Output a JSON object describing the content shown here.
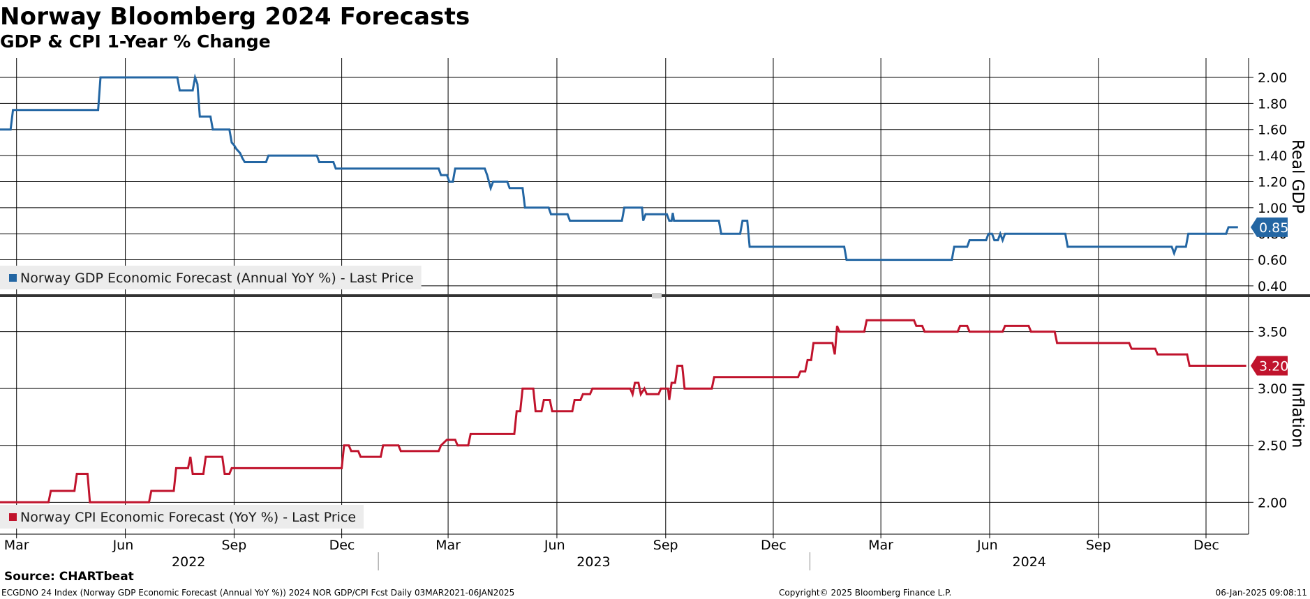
{
  "header": {
    "title": "Norway Bloomberg 2024 Forecasts",
    "subtitle": "GDP & CPI 1-Year % Change"
  },
  "footer": {
    "source": "Source: CHARTbeat",
    "description": "ECGDNO 24 Index (Norway GDP Economic Forecast (Annual YoY %)) 2024 NOR GDP/CPI Fcst  Daily 03MAR2021-06JAN2025",
    "copyright": "Copyright© 2025 Bloomberg Finance L.P.",
    "timestamp": "06-Jan-2025 09:08:11"
  },
  "colors": {
    "gdp": "#2366a3",
    "cpi": "#c0132c",
    "grid": "#000000",
    "legend_bg": "#ececec"
  },
  "chart_data": [
    {
      "type": "line",
      "panel": "top",
      "ylabel": "Real GDP",
      "ylim": [
        0.33,
        2.15
      ],
      "yticks": [
        0.4,
        0.6,
        0.8,
        1.0,
        1.2,
        1.4,
        1.6,
        1.8,
        2.0
      ],
      "ytick_labels": [
        "0.40",
        "0.60",
        "0.80",
        "1.00",
        "1.20",
        "1.40",
        "1.60",
        "1.80",
        "2.00"
      ],
      "xlim": [
        "2022-02-15",
        "2025-01-06"
      ],
      "grid": true,
      "legend_position": "bottom-left",
      "last_value_label": "0.85",
      "series": [
        {
          "name": "Norway GDP Economic Forecast (Annual YoY %) - Last Price",
          "points": [
            [
              "2022-02-15",
              1.6
            ],
            [
              "2022-02-24",
              1.6
            ],
            [
              "2022-02-26",
              1.75
            ],
            [
              "2022-05-09",
              1.75
            ],
            [
              "2022-05-11",
              2.0
            ],
            [
              "2022-07-15",
              2.0
            ],
            [
              "2022-07-17",
              1.9
            ],
            [
              "2022-07-28",
              1.9
            ],
            [
              "2022-07-30",
              2.0
            ],
            [
              "2022-08-01",
              1.95
            ],
            [
              "2022-08-03",
              1.7
            ],
            [
              "2022-08-12",
              1.7
            ],
            [
              "2022-08-14",
              1.6
            ],
            [
              "2022-08-28",
              1.6
            ],
            [
              "2022-08-30",
              1.5
            ],
            [
              "2022-09-01",
              1.48
            ],
            [
              "2022-09-03",
              1.45
            ],
            [
              "2022-09-06",
              1.42
            ],
            [
              "2022-09-08",
              1.38
            ],
            [
              "2022-09-10",
              1.35
            ],
            [
              "2022-09-28",
              1.35
            ],
            [
              "2022-09-30",
              1.4
            ],
            [
              "2022-11-10",
              1.4
            ],
            [
              "2022-11-12",
              1.35
            ],
            [
              "2022-11-24",
              1.35
            ],
            [
              "2022-11-26",
              1.3
            ],
            [
              "2023-02-21",
              1.3
            ],
            [
              "2023-02-23",
              1.25
            ],
            [
              "2023-02-28",
              1.25
            ],
            [
              "2023-03-02",
              1.2
            ],
            [
              "2023-03-05",
              1.2
            ],
            [
              "2023-03-07",
              1.3
            ],
            [
              "2023-04-01",
              1.3
            ],
            [
              "2023-04-03",
              1.25
            ],
            [
              "2023-04-06",
              1.15
            ],
            [
              "2023-04-08",
              1.2
            ],
            [
              "2023-04-20",
              1.2
            ],
            [
              "2023-04-22",
              1.15
            ],
            [
              "2023-05-03",
              1.15
            ],
            [
              "2023-05-05",
              1.0
            ],
            [
              "2023-05-25",
              1.0
            ],
            [
              "2023-05-27",
              0.95
            ],
            [
              "2023-06-10",
              0.95
            ],
            [
              "2023-06-12",
              0.9
            ],
            [
              "2023-07-26",
              0.9
            ],
            [
              "2023-07-28",
              1.0
            ],
            [
              "2023-08-12",
              1.0
            ],
            [
              "2023-08-13",
              0.9
            ],
            [
              "2023-08-15",
              0.95
            ],
            [
              "2023-09-02",
              0.95
            ],
            [
              "2023-09-04",
              0.9
            ],
            [
              "2023-09-06",
              0.9
            ],
            [
              "2023-09-07",
              0.96
            ],
            [
              "2023-09-08",
              0.9
            ],
            [
              "2023-10-16",
              0.9
            ],
            [
              "2023-10-18",
              0.8
            ],
            [
              "2023-11-03",
              0.8
            ],
            [
              "2023-11-05",
              0.9
            ],
            [
              "2023-11-09",
              0.9
            ],
            [
              "2023-11-11",
              0.7
            ],
            [
              "2024-01-30",
              0.7
            ],
            [
              "2024-02-01",
              0.6
            ],
            [
              "2024-04-30",
              0.6
            ],
            [
              "2024-05-02",
              0.7
            ],
            [
              "2024-05-13",
              0.7
            ],
            [
              "2024-05-15",
              0.75
            ],
            [
              "2024-05-29",
              0.75
            ],
            [
              "2024-05-31",
              0.8
            ],
            [
              "2024-06-03",
              0.8
            ],
            [
              "2024-06-05",
              0.75
            ],
            [
              "2024-06-08",
              0.75
            ],
            [
              "2024-06-10",
              0.8
            ],
            [
              "2024-06-12",
              0.75
            ],
            [
              "2024-06-14",
              0.8
            ],
            [
              "2024-08-04",
              0.8
            ],
            [
              "2024-08-06",
              0.7
            ],
            [
              "2024-11-02",
              0.7
            ],
            [
              "2024-11-04",
              0.65
            ],
            [
              "2024-11-06",
              0.7
            ],
            [
              "2024-11-14",
              0.7
            ],
            [
              "2024-11-16",
              0.8
            ],
            [
              "2024-12-18",
              0.8
            ],
            [
              "2024-12-20",
              0.85
            ],
            [
              "2024-12-28",
              0.85
            ]
          ]
        }
      ]
    },
    {
      "type": "line",
      "panel": "bottom",
      "ylabel": "Inflation",
      "ylim": [
        1.72,
        3.81
      ],
      "yticks": [
        2.0,
        2.5,
        3.0,
        3.5
      ],
      "ytick_labels": [
        "2.00",
        "2.50",
        "3.00",
        "3.50"
      ],
      "xlim": [
        "2022-02-15",
        "2025-01-06"
      ],
      "grid": true,
      "legend_position": "bottom-left",
      "last_value_label": "3.20",
      "series": [
        {
          "name": "Norway CPI Economic Forecast (YoY %) - Last Price",
          "points": [
            [
              "2022-02-15",
              2.0
            ],
            [
              "2022-03-28",
              2.0
            ],
            [
              "2022-03-30",
              2.1
            ],
            [
              "2022-04-19",
              2.1
            ],
            [
              "2022-04-21",
              2.25
            ],
            [
              "2022-04-30",
              2.25
            ],
            [
              "2022-05-02",
              2.0
            ],
            [
              "2022-06-21",
              2.0
            ],
            [
              "2022-06-23",
              2.1
            ],
            [
              "2022-07-12",
              2.1
            ],
            [
              "2022-07-14",
              2.3
            ],
            [
              "2022-07-24",
              2.3
            ],
            [
              "2022-07-26",
              2.4
            ],
            [
              "2022-07-28",
              2.25
            ],
            [
              "2022-08-06",
              2.25
            ],
            [
              "2022-08-08",
              2.4
            ],
            [
              "2022-08-22",
              2.4
            ],
            [
              "2022-08-24",
              2.25
            ],
            [
              "2022-08-28",
              2.25
            ],
            [
              "2022-08-30",
              2.3
            ],
            [
              "2022-12-01",
              2.3
            ],
            [
              "2022-12-03",
              2.5
            ],
            [
              "2022-12-07",
              2.5
            ],
            [
              "2022-12-09",
              2.45
            ],
            [
              "2022-12-15",
              2.45
            ],
            [
              "2022-12-17",
              2.4
            ],
            [
              "2023-01-03",
              2.4
            ],
            [
              "2023-01-05",
              2.5
            ],
            [
              "2023-01-18",
              2.5
            ],
            [
              "2023-01-20",
              2.45
            ],
            [
              "2023-02-21",
              2.45
            ],
            [
              "2023-02-23",
              2.5
            ],
            [
              "2023-02-28",
              2.55
            ],
            [
              "2023-03-07",
              2.55
            ],
            [
              "2023-03-09",
              2.5
            ],
            [
              "2023-03-18",
              2.5
            ],
            [
              "2023-03-20",
              2.6
            ],
            [
              "2023-04-26",
              2.6
            ],
            [
              "2023-04-28",
              2.8
            ],
            [
              "2023-05-01",
              2.8
            ],
            [
              "2023-05-03",
              3.0
            ],
            [
              "2023-05-12",
              3.0
            ],
            [
              "2023-05-14",
              2.8
            ],
            [
              "2023-05-19",
              2.8
            ],
            [
              "2023-05-21",
              2.9
            ],
            [
              "2023-05-26",
              2.9
            ],
            [
              "2023-05-28",
              2.8
            ],
            [
              "2023-06-14",
              2.8
            ],
            [
              "2023-06-16",
              2.9
            ],
            [
              "2023-06-21",
              2.9
            ],
            [
              "2023-06-23",
              2.95
            ],
            [
              "2023-06-29",
              2.95
            ],
            [
              "2023-07-01",
              3.0
            ],
            [
              "2023-08-02",
              3.0
            ],
            [
              "2023-08-04",
              2.95
            ],
            [
              "2023-08-06",
              3.05
            ],
            [
              "2023-08-09",
              3.05
            ],
            [
              "2023-08-11",
              2.95
            ],
            [
              "2023-08-14",
              3.0
            ],
            [
              "2023-08-16",
              2.95
            ],
            [
              "2023-08-26",
              2.95
            ],
            [
              "2023-08-28",
              3.0
            ],
            [
              "2023-09-03",
              3.0
            ],
            [
              "2023-09-04",
              2.9
            ],
            [
              "2023-09-06",
              3.05
            ],
            [
              "2023-09-09",
              3.05
            ],
            [
              "2023-09-11",
              3.2
            ],
            [
              "2023-09-15",
              3.2
            ],
            [
              "2023-09-17",
              3.0
            ],
            [
              "2023-10-10",
              3.0
            ],
            [
              "2023-10-12",
              3.1
            ],
            [
              "2023-12-22",
              3.1
            ],
            [
              "2023-12-24",
              3.15
            ],
            [
              "2023-12-28",
              3.15
            ],
            [
              "2023-12-30",
              3.25
            ],
            [
              "2024-01-02",
              3.25
            ],
            [
              "2024-01-04",
              3.4
            ],
            [
              "2024-01-20",
              3.4
            ],
            [
              "2024-01-22",
              3.3
            ],
            [
              "2024-01-24",
              3.55
            ],
            [
              "2024-01-26",
              3.5
            ],
            [
              "2024-02-16",
              3.5
            ],
            [
              "2024-02-18",
              3.6
            ],
            [
              "2024-03-29",
              3.6
            ],
            [
              "2024-03-31",
              3.55
            ],
            [
              "2024-04-05",
              3.55
            ],
            [
              "2024-04-07",
              3.5
            ],
            [
              "2024-05-05",
              3.5
            ],
            [
              "2024-05-07",
              3.55
            ],
            [
              "2024-05-13",
              3.55
            ],
            [
              "2024-05-15",
              3.5
            ],
            [
              "2024-06-12",
              3.5
            ],
            [
              "2024-06-14",
              3.55
            ],
            [
              "2024-07-04",
              3.55
            ],
            [
              "2024-07-06",
              3.5
            ],
            [
              "2024-07-26",
              3.5
            ],
            [
              "2024-07-28",
              3.4
            ],
            [
              "2024-09-27",
              3.4
            ],
            [
              "2024-09-29",
              3.35
            ],
            [
              "2024-10-19",
              3.35
            ],
            [
              "2024-10-21",
              3.3
            ],
            [
              "2024-11-15",
              3.3
            ],
            [
              "2024-11-17",
              3.2
            ],
            [
              "2025-01-04",
              3.2
            ]
          ]
        }
      ]
    }
  ],
  "x_axis": {
    "month_ticks": [
      {
        "date": "2022-03-01",
        "label": "Mar"
      },
      {
        "date": "2022-06-01",
        "label": "Jun"
      },
      {
        "date": "2022-09-01",
        "label": "Sep"
      },
      {
        "date": "2022-12-01",
        "label": "Dec"
      },
      {
        "date": "2023-03-01",
        "label": "Mar"
      },
      {
        "date": "2023-06-01",
        "label": "Jun"
      },
      {
        "date": "2023-09-01",
        "label": "Sep"
      },
      {
        "date": "2023-12-01",
        "label": "Dec"
      },
      {
        "date": "2024-03-01",
        "label": "Mar"
      },
      {
        "date": "2024-06-01",
        "label": "Jun"
      },
      {
        "date": "2024-09-01",
        "label": "Sep"
      },
      {
        "date": "2024-12-01",
        "label": "Dec"
      }
    ],
    "years": [
      {
        "label": "2022",
        "start": "2022-02-15",
        "end": "2022-12-31"
      },
      {
        "label": "2023",
        "start": "2023-01-01",
        "end": "2023-12-31"
      },
      {
        "label": "2024",
        "start": "2024-01-01",
        "end": "2025-01-06"
      }
    ]
  }
}
